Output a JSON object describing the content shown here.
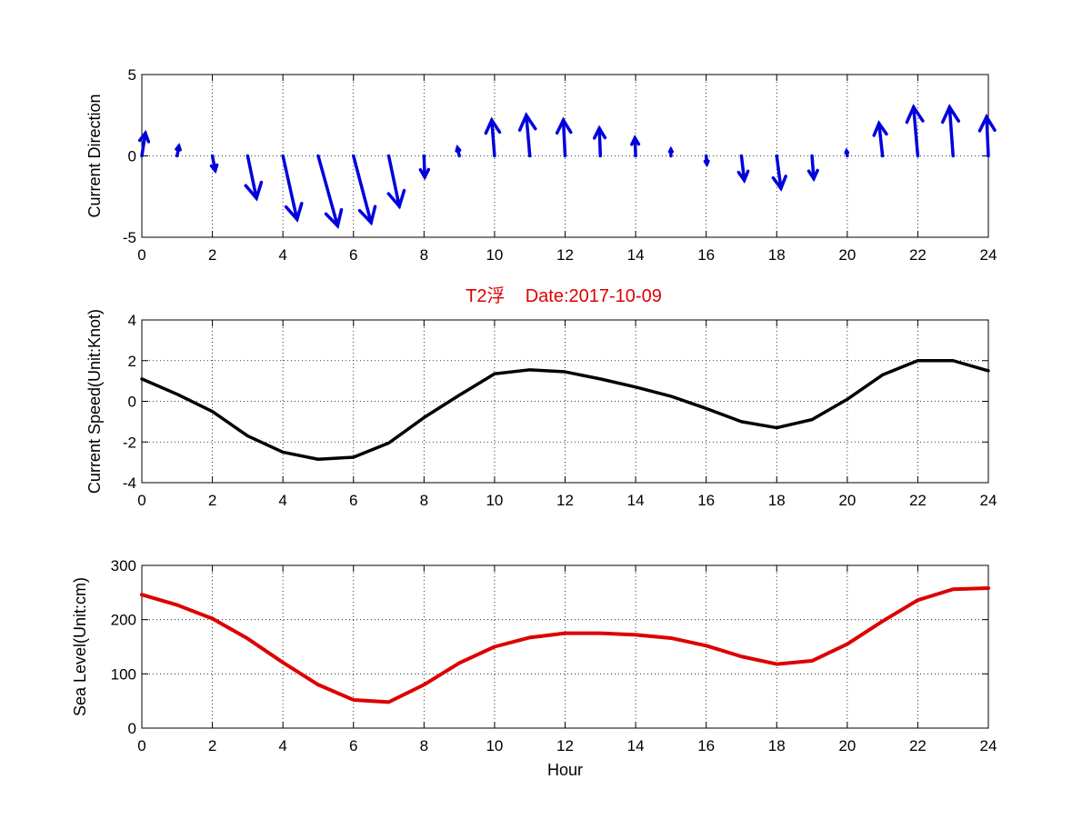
{
  "title": "T2浮    Date:2017-10-09",
  "colors": {
    "direction": "#0000dd",
    "speed": "#000000",
    "sea_level": "#dd0000",
    "title": "#dd0000"
  },
  "chart_data": [
    {
      "type": "quiver",
      "name": "direction",
      "ylabel": "Current Direction",
      "xlabel": "",
      "xlim": [
        0,
        24
      ],
      "ylim": [
        -5,
        5
      ],
      "xticks": [
        0,
        2,
        4,
        6,
        8,
        10,
        12,
        14,
        16,
        18,
        20,
        22,
        24
      ],
      "yticks": [
        -5,
        0,
        5
      ],
      "grid": true,
      "x": [
        0,
        1,
        2,
        3,
        4,
        5,
        6,
        7,
        8,
        9,
        10,
        11,
        12,
        13,
        14,
        15,
        16,
        17,
        18,
        19,
        20,
        21,
        22,
        23,
        24
      ],
      "u": [
        0.1,
        0.05,
        0.08,
        0.25,
        0.4,
        0.55,
        0.5,
        0.3,
        0.02,
        -0.05,
        -0.08,
        -0.1,
        -0.05,
        -0.03,
        -0.02,
        0.0,
        0.02,
        0.08,
        0.12,
        0.05,
        -0.02,
        -0.1,
        -0.12,
        -0.1,
        -0.05
      ],
      "v": [
        1.4,
        0.6,
        -0.9,
        -2.6,
        -3.9,
        -4.3,
        -4.1,
        -3.1,
        -1.3,
        0.5,
        2.2,
        2.5,
        2.2,
        1.7,
        1.1,
        0.4,
        -0.5,
        -1.5,
        -2.0,
        -1.4,
        0.3,
        2.0,
        3.0,
        3.0,
        2.4
      ]
    },
    {
      "type": "line",
      "name": "speed",
      "ylabel": "Current Speed(Unit:Knot)",
      "xlabel": "",
      "xlim": [
        0,
        24
      ],
      "ylim": [
        -4,
        4
      ],
      "xticks": [
        0,
        2,
        4,
        6,
        8,
        10,
        12,
        14,
        16,
        18,
        20,
        22,
        24
      ],
      "yticks": [
        -4,
        -2,
        0,
        2,
        4
      ],
      "grid": true,
      "x": [
        0,
        1,
        2,
        3,
        4,
        5,
        6,
        7,
        8,
        9,
        10,
        11,
        12,
        13,
        14,
        15,
        16,
        17,
        18,
        19,
        20,
        21,
        22,
        23,
        24
      ],
      "y": [
        1.1,
        0.35,
        -0.5,
        -1.7,
        -2.5,
        -2.85,
        -2.75,
        -2.05,
        -0.8,
        0.3,
        1.35,
        1.55,
        1.45,
        1.1,
        0.7,
        0.25,
        -0.35,
        -1.0,
        -1.3,
        -0.9,
        0.1,
        1.3,
        2.0,
        2.0,
        1.5
      ]
    },
    {
      "type": "line",
      "name": "sea_level",
      "ylabel": "Sea Level(Unit:cm)",
      "xlabel": "Hour",
      "xlim": [
        0,
        24
      ],
      "ylim": [
        0,
        300
      ],
      "xticks": [
        0,
        2,
        4,
        6,
        8,
        10,
        12,
        14,
        16,
        18,
        20,
        22,
        24
      ],
      "yticks": [
        0,
        100,
        200,
        300
      ],
      "grid": true,
      "x": [
        0,
        1,
        2,
        3,
        4,
        5,
        6,
        7,
        8,
        9,
        10,
        11,
        12,
        13,
        14,
        15,
        16,
        17,
        18,
        19,
        20,
        21,
        22,
        23,
        24
      ],
      "y": [
        246,
        227,
        202,
        165,
        121,
        80,
        52,
        48,
        80,
        120,
        150,
        167,
        175,
        175,
        172,
        166,
        152,
        132,
        118,
        124,
        155,
        197,
        236,
        256,
        258
      ]
    }
  ]
}
